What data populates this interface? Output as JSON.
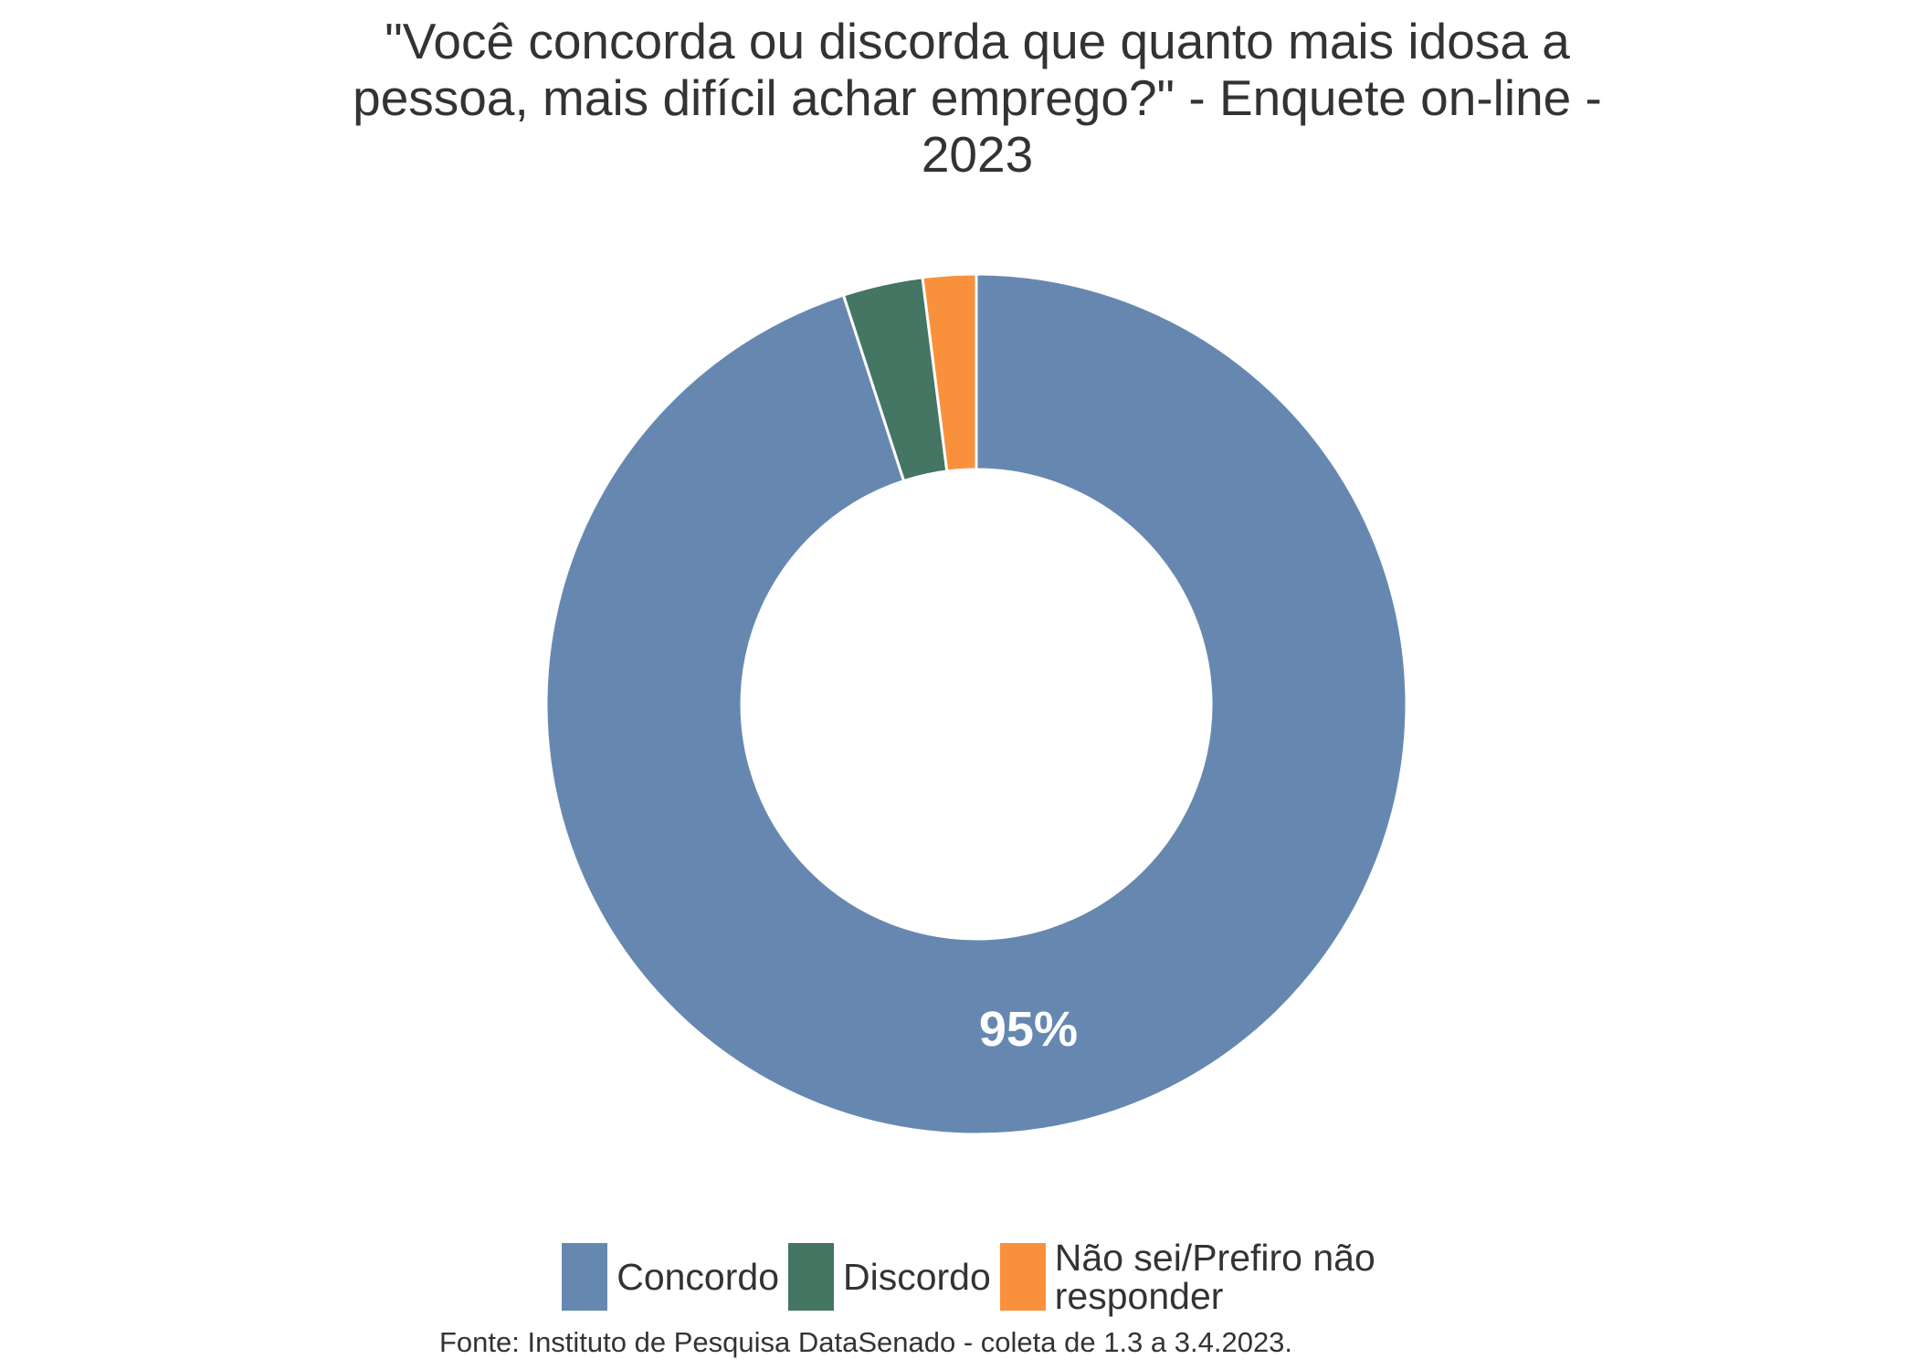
{
  "chart_data": {
    "type": "donut",
    "title": "\"Você concorda ou discorda que quanto mais idosa a pessoa, mais difícil achar emprego?\" - Enquete on-line - 2023",
    "categories": [
      "Concordo",
      "Discordo",
      "Não sei/Prefiro não responder"
    ],
    "values": [
      95,
      3,
      2
    ],
    "value_labels": [
      "95%",
      null,
      null
    ],
    "colors": [
      "#6688b0",
      "#457563",
      "#f9913c"
    ],
    "source": "Fonte: Instituto de Pesquisa DataSenado - coleta de 1.3 a 3.4.2023.",
    "legend": "bottom"
  }
}
